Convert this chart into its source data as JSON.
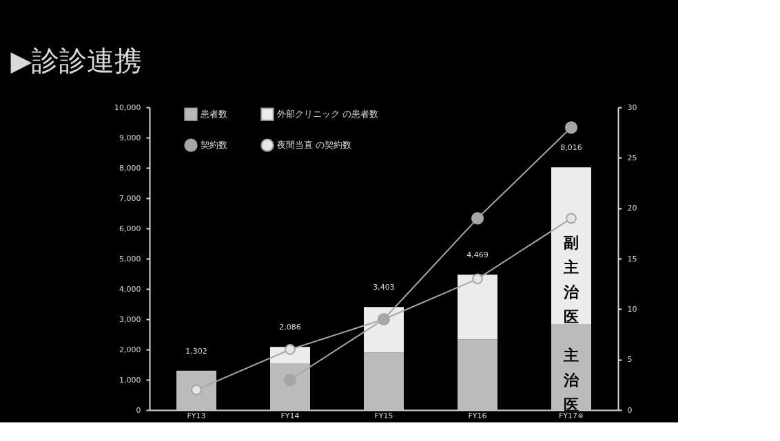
{
  "chart_data": {
    "type": "bar",
    "title": "▶診診連携",
    "categories": [
      "FY13",
      "FY14",
      "FY15",
      "FY16",
      "FY17※"
    ],
    "stacked": true,
    "series": [
      {
        "name": "患者数",
        "color": "#bbbbbb",
        "values": [
          1302,
          1530,
          1900,
          2330,
          2840
        ]
      },
      {
        "name": "外部クリニック の患者数",
        "color": "#ececec",
        "values": [
          0,
          556,
          1503,
          2139,
          5176
        ]
      },
      {
        "name": "契約数",
        "type": "line",
        "axis": "y2",
        "color": "#a6a6a6",
        "values": [
          null,
          3,
          9,
          19,
          28
        ]
      },
      {
        "name": "夜間当直 の契約数",
        "type": "line",
        "axis": "y2",
        "color": "#e6e6e6",
        "values": [
          2,
          6,
          9,
          13,
          19
        ]
      }
    ],
    "totals": [
      "1,302",
      "2,086",
      "3,403",
      "4,469",
      "8,016"
    ],
    "ylim": [
      0,
      10000
    ],
    "yticks": [
      0,
      {
        "value": 1000,
        "label": "1,000"
      },
      {
        "value": 2000,
        "label": "2,000"
      },
      {
        "value": 3000,
        "label": "3,000"
      },
      {
        "value": 4000,
        "label": "4,000"
      },
      {
        "value": 5000,
        "label": "5,000"
      },
      {
        "value": 6000,
        "label": "6,000"
      },
      {
        "value": 7000,
        "label": "7,000"
      },
      {
        "value": 8000,
        "label": "8,000"
      },
      {
        "value": 9000,
        "label": "9,000"
      },
      {
        "value": 10000,
        "label": "10,000"
      }
    ],
    "y2lim": [
      0,
      30
    ],
    "y2ticks": [
      0,
      5,
      10,
      15,
      20,
      25,
      30
    ],
    "annotations": [
      "副主治医",
      "主治医"
    ],
    "marker": "circle",
    "grid": false,
    "legend": "top left"
  }
}
